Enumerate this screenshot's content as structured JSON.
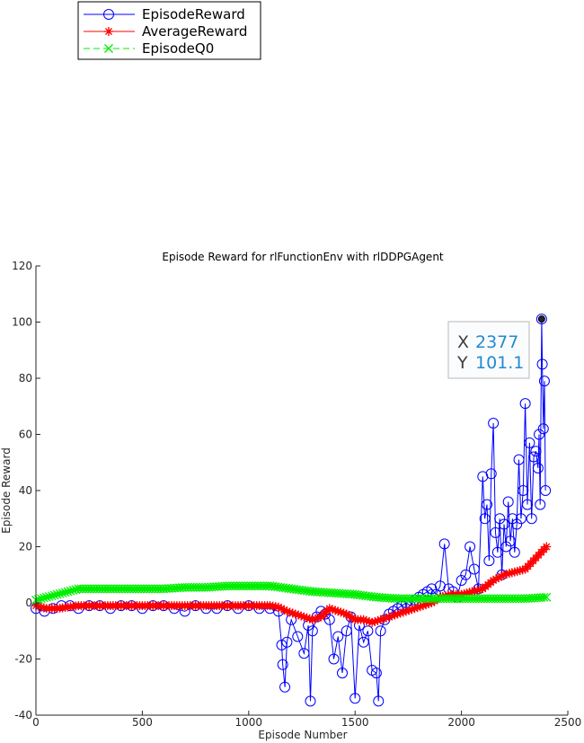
{
  "chart_data": {
    "type": "line",
    "title": "Episode Reward for rlFunctionEnv with rlDDPGAgent",
    "xlabel": "Episode Number",
    "ylabel": "Episode Reward",
    "xlim": [
      0,
      2500
    ],
    "ylim": [
      -40,
      120
    ],
    "xticks": [
      0,
      500,
      1000,
      1500,
      2000,
      2500
    ],
    "yticks": [
      -40,
      -20,
      0,
      20,
      40,
      60,
      80,
      100,
      120
    ],
    "xtick_labels": [
      "0",
      "500",
      "1000",
      "1500",
      "2000",
      "2500"
    ],
    "ytick_labels": [
      "-40",
      "-20",
      "0",
      "20",
      "40",
      "60",
      "80",
      "100",
      "120"
    ],
    "grid": false,
    "legend_position": "top-left (detached above plot)",
    "series": [
      {
        "name": "EpisodeReward",
        "color": "#0000ff",
        "marker": "circle",
        "line": "solid",
        "x": [
          0,
          40,
          80,
          120,
          160,
          200,
          250,
          300,
          350,
          400,
          450,
          500,
          550,
          600,
          650,
          700,
          750,
          800,
          850,
          900,
          950,
          1000,
          1050,
          1100,
          1140,
          1155,
          1160,
          1170,
          1180,
          1200,
          1230,
          1260,
          1280,
          1290,
          1300,
          1320,
          1340,
          1360,
          1380,
          1400,
          1420,
          1440,
          1460,
          1480,
          1500,
          1520,
          1540,
          1560,
          1580,
          1600,
          1610,
          1620,
          1640,
          1660,
          1680,
          1700,
          1720,
          1740,
          1760,
          1780,
          1800,
          1820,
          1840,
          1860,
          1880,
          1900,
          1920,
          1940,
          1960,
          1980,
          2000,
          2020,
          2040,
          2060,
          2080,
          2100,
          2110,
          2120,
          2130,
          2140,
          2150,
          2160,
          2170,
          2180,
          2190,
          2200,
          2210,
          2220,
          2230,
          2240,
          2250,
          2260,
          2270,
          2280,
          2290,
          2300,
          2310,
          2320,
          2330,
          2340,
          2350,
          2360,
          2365,
          2370,
          2377,
          2380,
          2385,
          2390,
          2395
        ],
        "y": [
          -2,
          -3,
          -2,
          -1,
          -1,
          -2,
          -1,
          -1,
          -2,
          -1,
          -1,
          -2,
          -1,
          -1,
          -2,
          -3,
          -1,
          -2,
          -2,
          -1,
          -2,
          -1,
          -2,
          -2,
          -3,
          -15,
          -22,
          -30,
          -14,
          -6,
          -12,
          -18,
          -8,
          -35,
          -10,
          -5,
          -3,
          -4,
          -6,
          -20,
          -12,
          -25,
          -10,
          -5,
          -34,
          -8,
          -14,
          -10,
          -24,
          -25,
          -35,
          -10,
          -6,
          -4,
          -3,
          -2,
          -1,
          0,
          -1,
          1,
          2,
          3,
          4,
          5,
          3,
          6,
          21,
          5,
          4,
          2,
          8,
          10,
          20,
          12,
          5,
          45,
          30,
          35,
          15,
          46,
          64,
          25,
          18,
          30,
          10,
          28,
          20,
          36,
          22,
          30,
          18,
          28,
          51,
          30,
          40,
          71,
          35,
          57,
          30,
          52,
          54,
          48,
          60,
          35,
          101.1,
          85,
          62,
          79,
          40
        ]
      },
      {
        "name": "AverageReward",
        "color": "#ff0000",
        "marker": "star",
        "line": "solid",
        "x": [
          0,
          50,
          100,
          200,
          300,
          400,
          500,
          600,
          700,
          800,
          900,
          1000,
          1050,
          1100,
          1140,
          1180,
          1220,
          1260,
          1300,
          1340,
          1380,
          1420,
          1460,
          1500,
          1540,
          1580,
          1620,
          1660,
          1700,
          1740,
          1780,
          1820,
          1860,
          1900,
          1950,
          2000,
          2050,
          2100,
          2150,
          2200,
          2250,
          2300,
          2350,
          2400
        ],
        "y": [
          -1,
          -2,
          -2,
          -1,
          -1,
          -1,
          -1,
          -1,
          -1,
          -1,
          -1,
          -1,
          -1,
          -1,
          -1.5,
          -3,
          -4,
          -5,
          -6,
          -5,
          -2,
          -3,
          -4,
          -6,
          -6,
          -7,
          -6,
          -5,
          -4,
          -3,
          -2,
          -1,
          0,
          2,
          3,
          3,
          4,
          5,
          8,
          10,
          11,
          12,
          16,
          20
        ]
      },
      {
        "name": "EpisodeQ0",
        "color": "#00ee00",
        "marker": "x",
        "line": "dashed",
        "x": [
          0,
          50,
          100,
          150,
          200,
          300,
          400,
          500,
          600,
          700,
          800,
          900,
          1000,
          1100,
          1150,
          1200,
          1300,
          1400,
          1500,
          1600,
          1700,
          1800,
          1900,
          2000,
          2100,
          2200,
          2300,
          2400
        ],
        "y": [
          1,
          2,
          3,
          4,
          5,
          5,
          5,
          5,
          5,
          5.5,
          5.5,
          6,
          6,
          6,
          5.5,
          5,
          4,
          3.5,
          3,
          2,
          1.5,
          1.5,
          1.5,
          1.5,
          1.5,
          1.5,
          1.5,
          2
        ]
      }
    ],
    "datatip": {
      "x_label": "X",
      "x_value": "2377",
      "y_label": "Y",
      "y_value": "101.1",
      "x": 2377,
      "y": 101.1
    },
    "legend_entries": [
      "EpisodeReward",
      "AverageReward",
      "EpisodeQ0"
    ]
  }
}
